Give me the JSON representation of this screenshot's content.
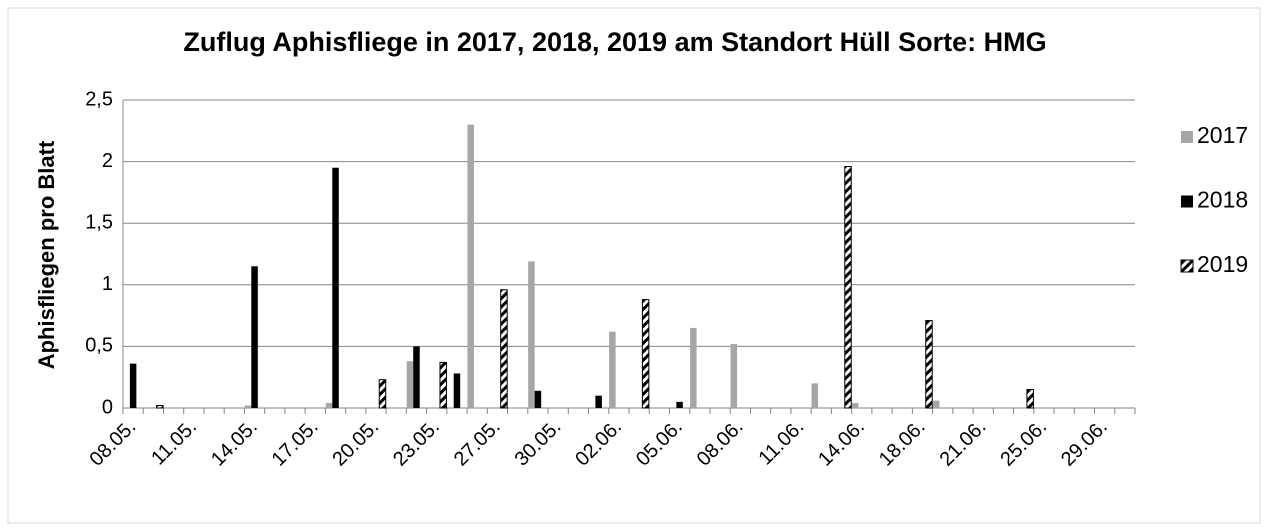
{
  "chart_data": {
    "type": "bar",
    "title": "Zuflug Aphisfliege in 2017, 2018, 2019 am Standort Hüll Sorte: HMG",
    "y_label": "Aphisfliegen pro Blatt",
    "categories": [
      "08.05.",
      null,
      null,
      "11.05.",
      null,
      null,
      "14.05.",
      null,
      null,
      "17.05.",
      null,
      null,
      "20.05.",
      null,
      null,
      "23.05.",
      null,
      null,
      "27.05.",
      null,
      null,
      "30.05.",
      null,
      null,
      "02.06.",
      null,
      null,
      "05.06.",
      null,
      null,
      "08.06.",
      null,
      null,
      "11.06.",
      null,
      null,
      "14.06.",
      null,
      null,
      "18.06.",
      null,
      null,
      "21.06.",
      null,
      null,
      "25.06.",
      null,
      null,
      "29.06.",
      null
    ],
    "series": [
      {
        "name": "2017",
        "color": "#a6a6a6",
        "values": [
          null,
          null,
          null,
          null,
          null,
          null,
          0.02,
          null,
          null,
          null,
          0.04,
          null,
          null,
          null,
          0.38,
          null,
          null,
          2.3,
          null,
          null,
          1.19,
          null,
          null,
          null,
          0.62,
          null,
          null,
          null,
          0.65,
          null,
          0.52,
          null,
          null,
          null,
          0.2,
          null,
          0.04,
          null,
          null,
          null,
          0.06,
          null,
          null,
          null,
          null,
          null,
          null,
          null,
          null,
          null
        ]
      },
      {
        "name": "2018",
        "color": "#000000",
        "values": [
          0.36,
          null,
          null,
          null,
          null,
          null,
          1.15,
          null,
          null,
          null,
          1.95,
          null,
          null,
          null,
          0.5,
          null,
          0.28,
          null,
          null,
          null,
          0.14,
          null,
          null,
          0.1,
          null,
          null,
          null,
          0.05,
          null,
          null,
          null,
          null,
          null,
          null,
          null,
          null,
          null,
          null,
          null,
          null,
          null,
          null,
          null,
          null,
          null,
          null,
          null,
          null,
          null,
          null
        ]
      },
      {
        "name": "2019",
        "color": "#000000",
        "pattern": "hatch",
        "values": [
          null,
          0.02,
          null,
          null,
          null,
          null,
          null,
          null,
          null,
          null,
          null,
          null,
          0.23,
          null,
          null,
          0.37,
          null,
          null,
          0.96,
          null,
          null,
          null,
          null,
          null,
          null,
          0.88,
          null,
          null,
          null,
          null,
          null,
          null,
          null,
          null,
          null,
          1.96,
          null,
          null,
          null,
          0.71,
          null,
          null,
          null,
          null,
          0.15,
          null,
          null,
          null,
          null,
          null
        ]
      }
    ],
    "ylim": [
      0,
      2.5
    ],
    "yticks": [
      0,
      {
        "value": 0.5,
        "label": "0,5"
      },
      1,
      {
        "value": 1.5,
        "label": "1,5"
      },
      2,
      {
        "value": 2.5,
        "label": "2,5"
      }
    ],
    "grid": true,
    "legend": "right"
  }
}
